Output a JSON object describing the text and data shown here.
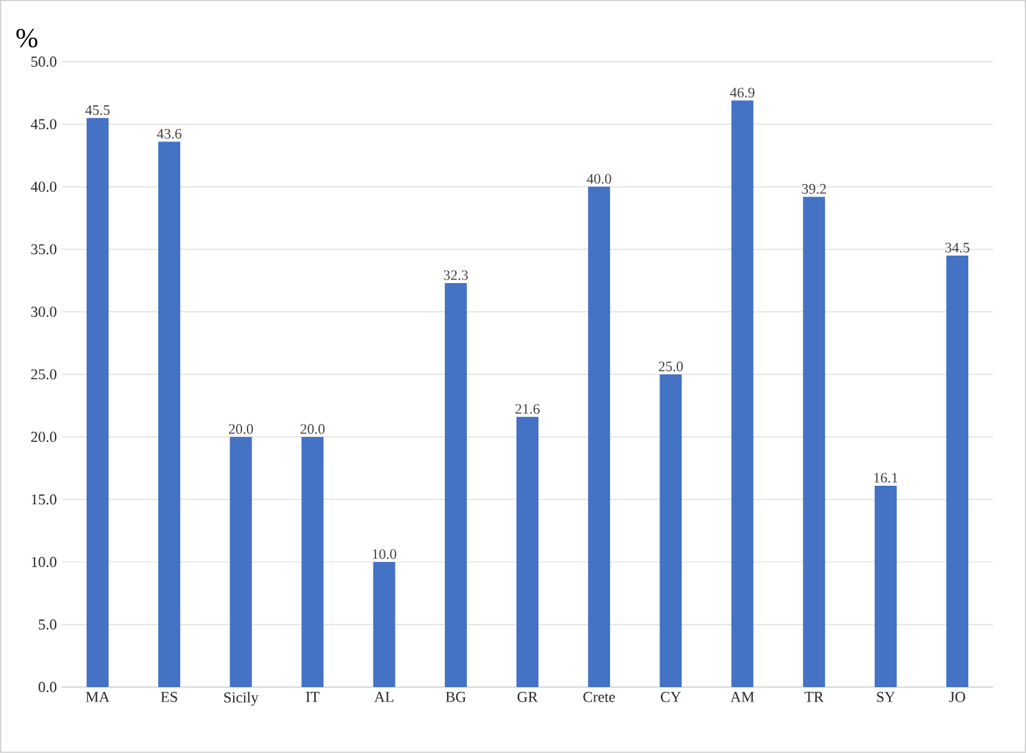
{
  "chart_data": {
    "type": "bar",
    "ylabel": "%",
    "categories": [
      "MA",
      "ES",
      "Sicily",
      "IT",
      "AL",
      "BG",
      "GR",
      "Crete",
      "CY",
      "AM",
      "TR",
      "SY",
      "JO"
    ],
    "values": [
      45.5,
      43.6,
      20.0,
      20.0,
      10.0,
      32.3,
      21.6,
      40.0,
      25.0,
      46.9,
      39.2,
      16.1,
      34.5
    ],
    "value_labels": [
      "45.5",
      "43.6",
      "20.0",
      "20.0",
      "10.0",
      "32.3",
      "21.6",
      "40.0",
      "25.0",
      "46.9",
      "39.2",
      "16.1",
      "34.5"
    ],
    "color": "#4472c4",
    "ylim": [
      0,
      50
    ],
    "yticks": [
      {
        "value": 0,
        "label": "0.0"
      },
      {
        "value": 5,
        "label": "5.0"
      },
      {
        "value": 10,
        "label": "10.0"
      },
      {
        "value": 15,
        "label": "15.0"
      },
      {
        "value": 20,
        "label": "20.0"
      },
      {
        "value": 25,
        "label": "25.0"
      },
      {
        "value": 30,
        "label": "30.0"
      },
      {
        "value": 35,
        "label": "35.0"
      },
      {
        "value": 40,
        "label": "40.0"
      },
      {
        "value": 45,
        "label": "45.0"
      },
      {
        "value": 50,
        "label": "50.0"
      }
    ],
    "grid": "y"
  }
}
